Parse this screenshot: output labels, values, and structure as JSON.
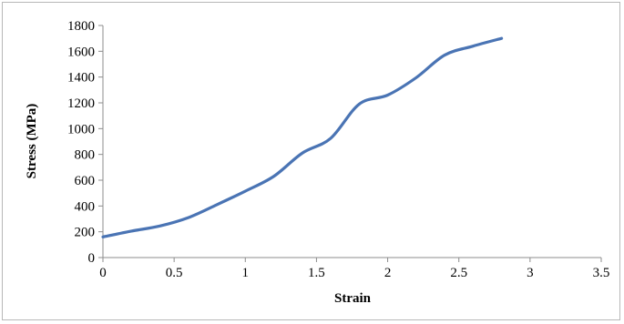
{
  "chart_data": {
    "type": "line",
    "title": "",
    "xlabel": "Strain",
    "ylabel": "Stress (MPa)",
    "xlim": [
      0,
      3.5
    ],
    "ylim": [
      0,
      1800
    ],
    "xticks": [
      "0",
      "0.5",
      "1",
      "1.5",
      "2",
      "2.5",
      "3",
      "3.5"
    ],
    "yticks": [
      "0",
      "200",
      "400",
      "600",
      "800",
      "1000",
      "1200",
      "1400",
      "1600",
      "1800"
    ],
    "grid": false,
    "legend": "none",
    "series": [
      {
        "color": "#4a74b4",
        "x": [
          0,
          0.2,
          0.4,
          0.6,
          0.8,
          1.0,
          1.2,
          1.4,
          1.6,
          1.8,
          2.0,
          2.2,
          2.4,
          2.6,
          2.8
        ],
        "y": [
          160,
          205,
          245,
          310,
          410,
          515,
          630,
          810,
          925,
          1190,
          1260,
          1395,
          1570,
          1640,
          1700
        ]
      }
    ]
  }
}
